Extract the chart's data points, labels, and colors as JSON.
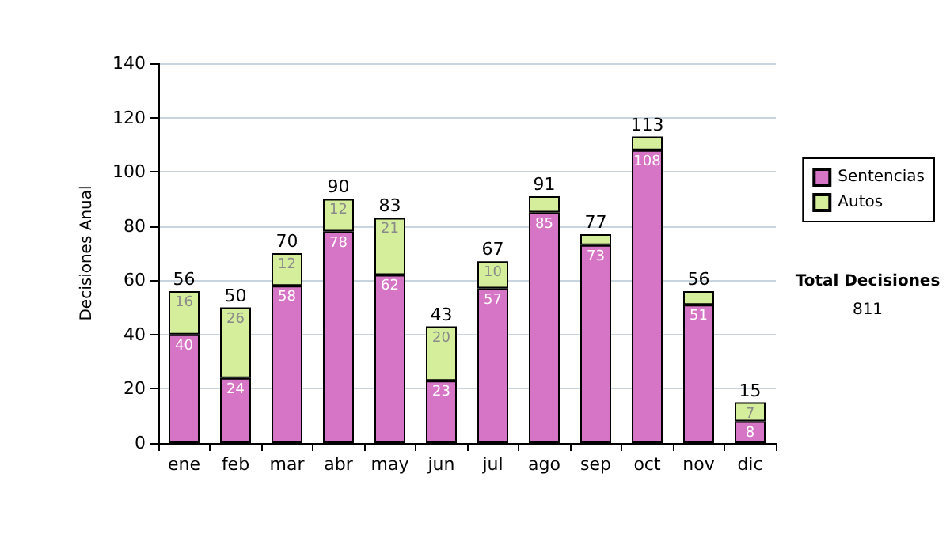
{
  "chart_data": {
    "type": "bar",
    "stacked": true,
    "ylabel": "Decisiones Anual",
    "categories": [
      "ene",
      "feb",
      "mar",
      "abr",
      "may",
      "jun",
      "jul",
      "ago",
      "sep",
      "oct",
      "nov",
      "dic"
    ],
    "series": [
      {
        "name": "Sentencias",
        "color": "#d674c6",
        "values": [
          40,
          24,
          58,
          78,
          62,
          23,
          57,
          85,
          73,
          108,
          51,
          8
        ],
        "value_labels": [
          "40",
          "24",
          "58",
          "78",
          "62",
          "23",
          "57",
          "85",
          "73",
          "108",
          "51",
          "8"
        ]
      },
      {
        "name": "Autos",
        "color": "#d4ee9c",
        "values": [
          16,
          26,
          12,
          12,
          21,
          20,
          10,
          6,
          4,
          5,
          5,
          7
        ],
        "value_labels": [
          "16",
          "26",
          "12",
          "12",
          "21",
          "20",
          "10",
          null,
          null,
          null,
          null,
          "7"
        ]
      }
    ],
    "totals": [
      "56",
      "50",
      "70",
      "90",
      "83",
      "43",
      "67",
      "91",
      "77",
      "113",
      "56",
      "15"
    ],
    "ylim": [
      0,
      140
    ],
    "yticks": [
      0,
      20,
      40,
      60,
      80,
      100,
      120,
      140
    ],
    "grid": "y",
    "legend": "right",
    "annotations": [
      "Total Decisiones",
      "811"
    ]
  }
}
